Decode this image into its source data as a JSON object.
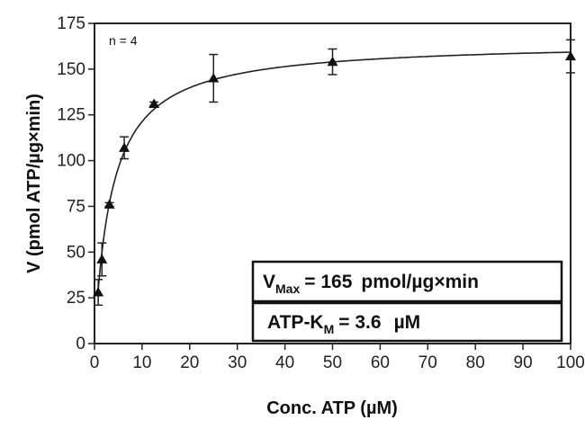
{
  "chart_data": {
    "type": "scatter",
    "xlabel": "Conc. ATP (µM)",
    "ylabel": "V (pmol ATP/µg×min)",
    "xlim": [
      0,
      100
    ],
    "ylim": [
      0,
      175
    ],
    "xticks": [
      0,
      10,
      20,
      30,
      40,
      50,
      60,
      70,
      80,
      90,
      100
    ],
    "yticks": [
      0,
      25,
      50,
      75,
      100,
      125,
      150,
      175
    ],
    "grid": false,
    "annotation": "n = 4",
    "series": [
      {
        "marker": "triangle",
        "points": [
          {
            "x": 0.78,
            "y": 28,
            "err": 7
          },
          {
            "x": 1.56,
            "y": 46,
            "err": 9
          },
          {
            "x": 3.13,
            "y": 76,
            "err": 1
          },
          {
            "x": 6.25,
            "y": 107,
            "err": 6
          },
          {
            "x": 12.5,
            "y": 131,
            "err": 1
          },
          {
            "x": 25,
            "y": 145,
            "err": 13
          },
          {
            "x": 50,
            "y": 154,
            "err": 7
          },
          {
            "x": 100,
            "y": 157,
            "err": 9
          }
        ]
      }
    ],
    "fit": {
      "model": "michaelis-menten",
      "vmax": 165,
      "km": 3.6
    },
    "results": {
      "vmax_label": "V",
      "vmax_sub": "Max",
      "vmax_value": "= 165",
      "vmax_unit": "pmol/µg×min",
      "km_label": "ATP-K",
      "km_sub": "M",
      "km_value": "= 3.6",
      "km_unit": "µM"
    }
  }
}
